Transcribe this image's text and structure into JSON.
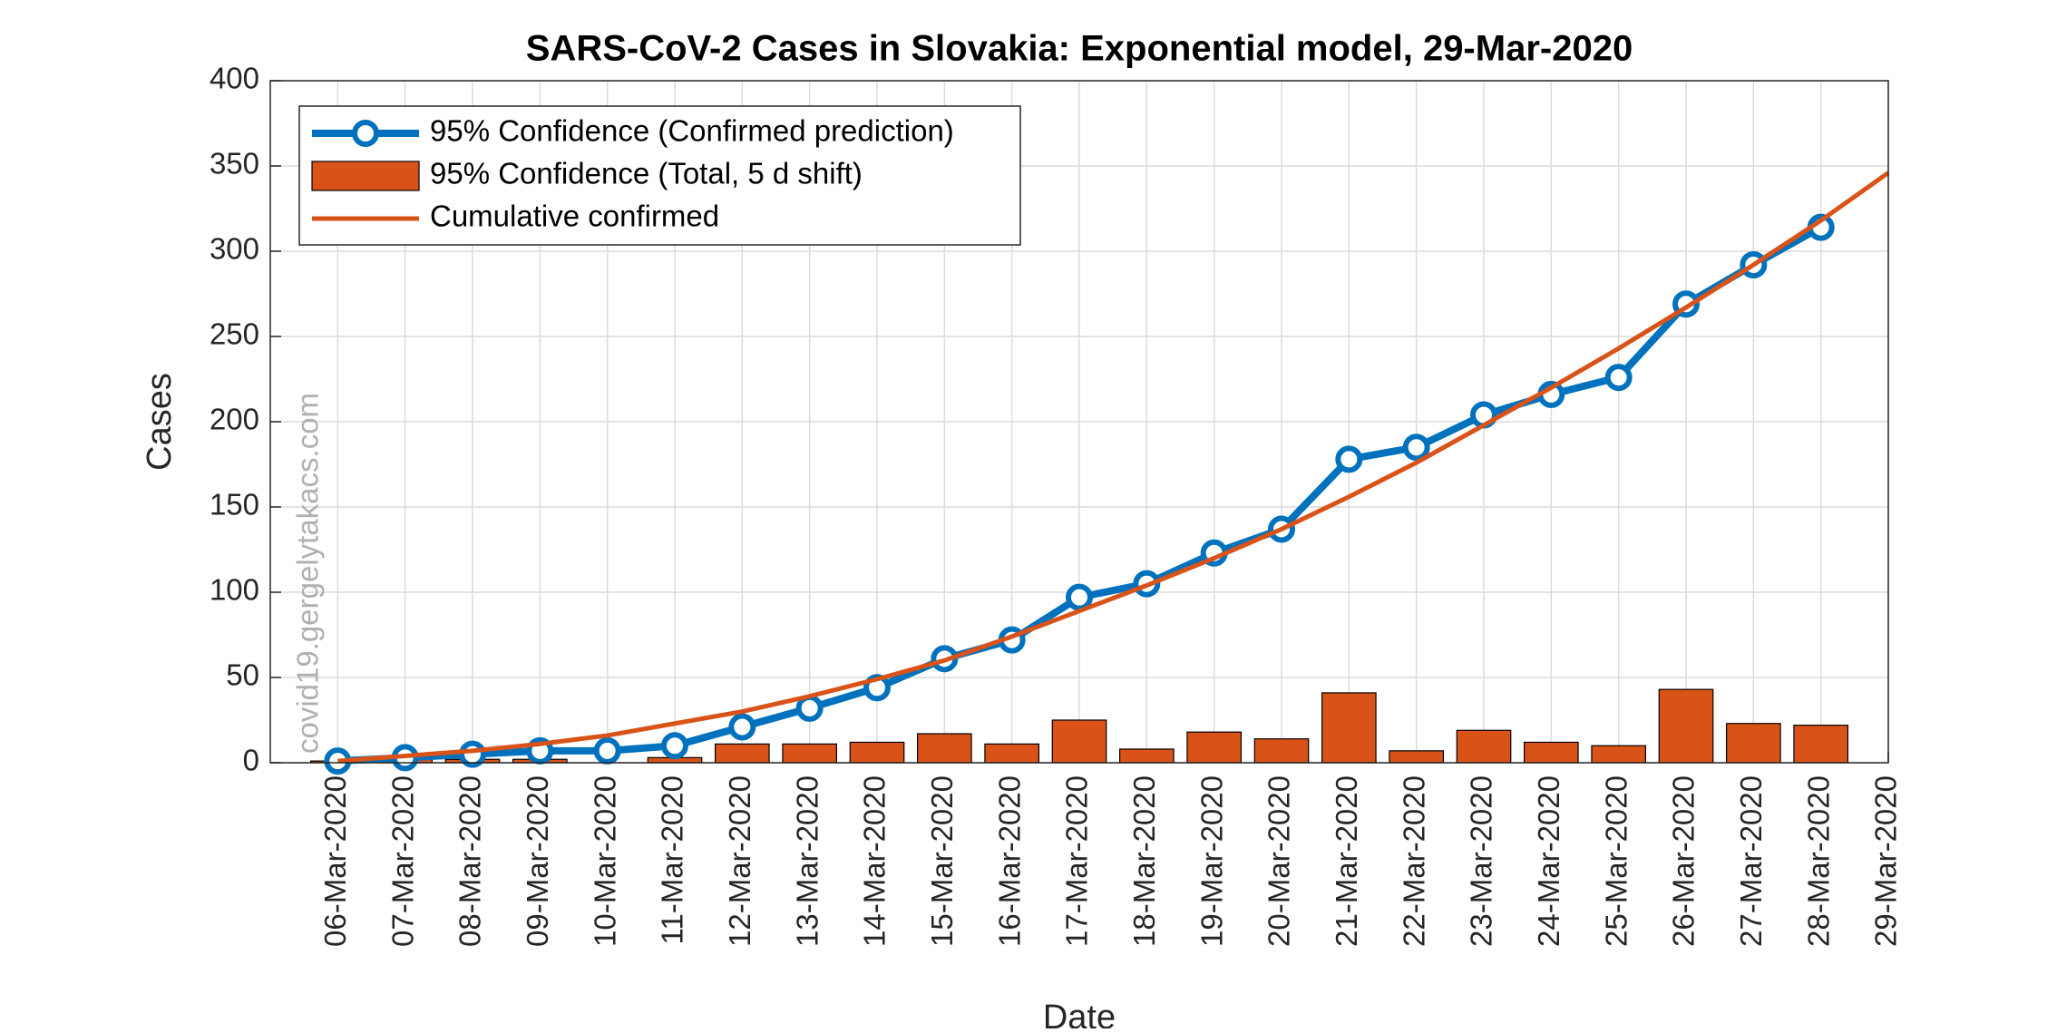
{
  "chart_data": {
    "type": "combo",
    "title": "SARS-CoV-2 Cases in Slovakia: Exponential model, 29-Mar-2020",
    "x_label": "Date",
    "y_label": "Cases",
    "watermark": "covid19.gergelytakacs.com",
    "categories": [
      "06-Mar-2020",
      "07-Mar-2020",
      "08-Mar-2020",
      "09-Mar-2020",
      "10-Mar-2020",
      "11-Mar-2020",
      "12-Mar-2020",
      "13-Mar-2020",
      "14-Mar-2020",
      "15-Mar-2020",
      "16-Mar-2020",
      "17-Mar-2020",
      "18-Mar-2020",
      "19-Mar-2020",
      "20-Mar-2020",
      "21-Mar-2020",
      "22-Mar-2020",
      "23-Mar-2020",
      "24-Mar-2020",
      "25-Mar-2020",
      "26-Mar-2020",
      "27-Mar-2020",
      "28-Mar-2020",
      "29-Mar-2020"
    ],
    "ylim": [
      0,
      400
    ],
    "yticks": [
      0,
      50,
      100,
      150,
      200,
      250,
      300,
      350,
      400
    ],
    "grid": true,
    "legend": "upper left",
    "series": [
      {
        "name": "95% Confidence (Confirmed prediction)",
        "type": "line",
        "marker": "circle",
        "color": "#0072bd",
        "values": [
          1,
          3,
          5,
          7,
          7,
          10,
          21,
          32,
          44,
          61,
          72,
          97,
          105,
          123,
          137,
          178,
          185,
          204,
          216,
          226,
          269,
          292,
          314,
          null
        ]
      },
      {
        "name": "95% Confidence (Total, 5 d shift)",
        "type": "bar",
        "color": "#d95319",
        "values": [
          1,
          2,
          2,
          2,
          0,
          3,
          11,
          11,
          12,
          17,
          11,
          25,
          8,
          18,
          14,
          41,
          7,
          19,
          12,
          10,
          43,
          23,
          22,
          null
        ]
      },
      {
        "name": "Cumulative confirmed",
        "type": "line",
        "marker": "none",
        "color": "#d95319",
        "values": [
          1,
          4,
          7,
          11,
          16,
          23,
          30,
          39,
          49,
          60,
          74,
          89,
          104,
          120,
          137,
          156,
          176,
          198,
          220,
          243,
          267,
          292,
          318,
          346
        ]
      }
    ]
  }
}
